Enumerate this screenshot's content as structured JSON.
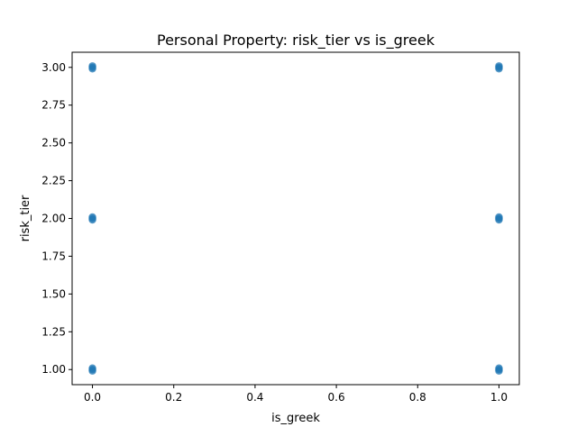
{
  "chart_data": {
    "type": "scatter",
    "title": "Personal Property: risk_tier vs is_greek",
    "xlabel": "is_greek",
    "ylabel": "risk_tier",
    "xlim": [
      -0.05,
      1.05
    ],
    "ylim": [
      0.9,
      3.1
    ],
    "xticks": [
      0.0,
      0.2,
      0.4,
      0.6,
      0.8,
      1.0
    ],
    "xtick_labels": [
      "0.0",
      "0.2",
      "0.4",
      "0.6",
      "0.8",
      "1.0"
    ],
    "yticks": [
      1.0,
      1.25,
      1.5,
      1.75,
      2.0,
      2.25,
      2.5,
      2.75,
      3.0
    ],
    "ytick_labels": [
      "1.00",
      "1.25",
      "1.50",
      "1.75",
      "2.00",
      "2.25",
      "2.50",
      "2.75",
      "3.00"
    ],
    "grid": false,
    "series": [
      {
        "color": "#1f77b4",
        "x": [
          0,
          0,
          0,
          1,
          1,
          1
        ],
        "y": [
          1,
          2,
          3,
          1,
          2,
          3
        ]
      }
    ]
  }
}
